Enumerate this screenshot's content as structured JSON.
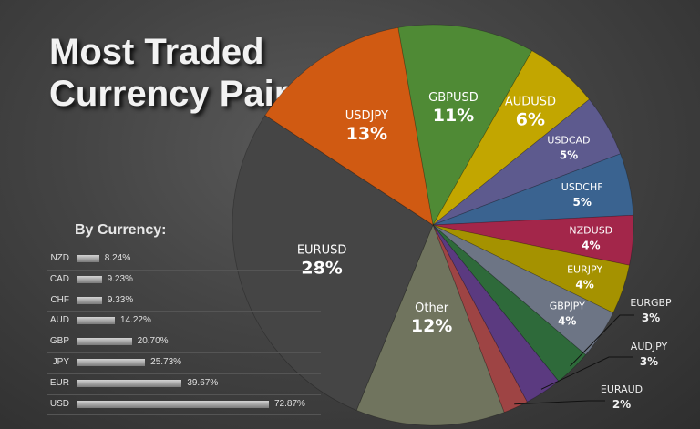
{
  "title_lines": [
    "Most Traded",
    "Currency Pairs"
  ],
  "subtitle": "By Currency:",
  "chart_data": [
    {
      "type": "pie",
      "slices": [
        {
          "label": "GBPUSD",
          "pct_label": "11%",
          "value": 11,
          "color": "#4f8a35"
        },
        {
          "label": "AUDUSD",
          "pct_label": "6%",
          "value": 6,
          "color": "#c2a600"
        },
        {
          "label": "USDCAD",
          "pct_label": "5%",
          "value": 5,
          "color": "#5d5a8e"
        },
        {
          "label": "USDCHF",
          "pct_label": "5%",
          "value": 5,
          "color": "#3a6390"
        },
        {
          "label": "NZDUSD",
          "pct_label": "4%",
          "value": 4,
          "color": "#a3264a"
        },
        {
          "label": "EURJPY",
          "pct_label": "4%",
          "value": 4,
          "color": "#a59200"
        },
        {
          "label": "GBPJPY",
          "pct_label": "4%",
          "value": 4,
          "color": "#6d7585"
        },
        {
          "label": "EURGBP",
          "pct_label": "3%",
          "value": 3,
          "color": "#2e6a3a"
        },
        {
          "label": "AUDJPY",
          "pct_label": "3%",
          "value": 3,
          "color": "#5b3a80"
        },
        {
          "label": "EURAUD",
          "pct_label": "2%",
          "value": 2,
          "color": "#9e4444"
        },
        {
          "label": "Other",
          "pct_label": "12%",
          "value": 12,
          "color": "#70745e"
        },
        {
          "label": "EURUSD",
          "pct_label": "28%",
          "value": 28,
          "color": "#454545"
        },
        {
          "label": "USDJPY",
          "pct_label": "13%",
          "value": 13,
          "color": "#d05a12"
        }
      ]
    },
    {
      "type": "bar",
      "categories": [
        "NZD",
        "CAD",
        "CHF",
        "AUD",
        "GBP",
        "JPY",
        "EUR",
        "USD"
      ],
      "values": [
        8.24,
        9.23,
        9.33,
        14.22,
        20.7,
        25.73,
        39.67,
        72.87
      ],
      "value_labels": [
        "8.24%",
        "9.23%",
        "9.33%",
        "14.22%",
        "20.70%",
        "25.73%",
        "39.67%",
        "72.87%"
      ]
    }
  ]
}
